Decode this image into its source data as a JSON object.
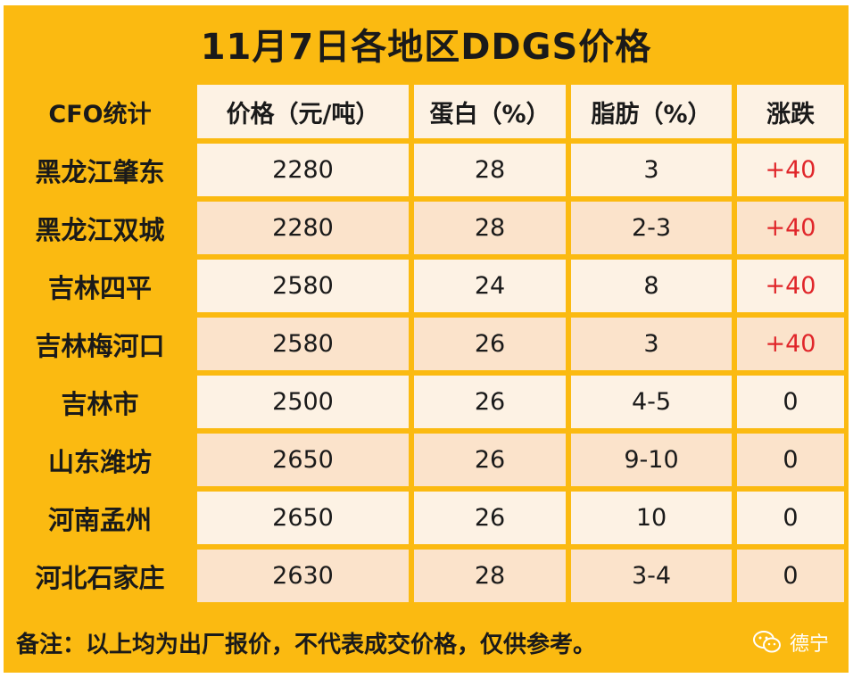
{
  "title": "11月7日各地区DDGS价格",
  "headers": [
    "CFO统计",
    "价格（元/吨）",
    "蛋白（%）",
    "脂肪（%）",
    "涨跌"
  ],
  "rows": [
    [
      "黑龙江肇东",
      "2280",
      "28",
      "3",
      "+40"
    ],
    [
      "黑龙江双城",
      "2280",
      "28",
      "2-3",
      "+40"
    ],
    [
      "吉林四平",
      "2580",
      "24",
      "8",
      "+40"
    ],
    [
      "吉林梅河口",
      "2580",
      "26",
      "3",
      "+40"
    ],
    [
      "吉林市",
      "2500",
      "26",
      "4-5",
      "0"
    ],
    [
      "山东潍坊",
      "2650",
      "26",
      "9-10",
      "0"
    ],
    [
      "河南孟州",
      "2650",
      "26",
      "10",
      "0"
    ],
    [
      "河北石家庄",
      "2630",
      "28",
      "3-4",
      "0"
    ]
  ],
  "note": "备注：以上均为出厂报价，不代表成交价格，仅供参考。",
  "brand": {
    "name": "德宁",
    "icon": "wechat-icon"
  },
  "colors": {
    "frame": "#fbba11",
    "cell_light": "#fdf2e4",
    "cell_peach": "#fbe3cb",
    "up": "#e0262a"
  }
}
